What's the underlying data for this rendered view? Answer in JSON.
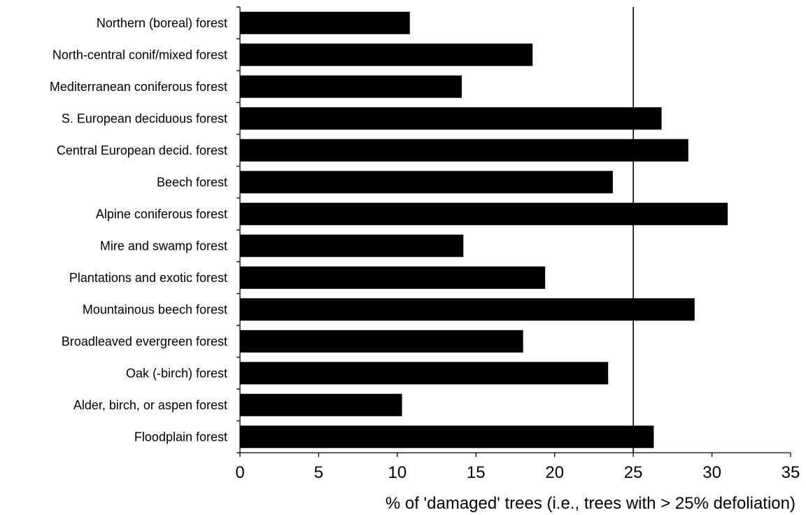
{
  "chart_data": {
    "type": "bar",
    "orientation": "horizontal",
    "title": "",
    "xlabel": "% of 'damaged' trees (i.e., trees with > 25% defoliation)",
    "ylabel": "",
    "xlim": [
      0,
      35
    ],
    "xticks": [
      0,
      5,
      10,
      15,
      20,
      25,
      30,
      35
    ],
    "grid": false,
    "legend": "none",
    "bar_color": "#000000",
    "reference_line_x": 25,
    "categories": [
      "Northern (boreal) forest",
      "North-central conif/mixed forest",
      "Mediterranean coniferous forest",
      "S. European deciduous forest",
      "Central European decid. forest",
      "Beech forest",
      "Alpine coniferous forest",
      "Mire and swamp forest",
      "Plantations and exotic forest",
      "Mountainous beech forest",
      "Broadleaved evergreen forest",
      "Oak (-birch) forest",
      "Alder, birch, or aspen forest",
      "Floodplain forest"
    ],
    "values": [
      10.8,
      18.6,
      14.1,
      26.8,
      28.5,
      23.7,
      31.0,
      14.2,
      19.4,
      28.9,
      18.0,
      23.4,
      10.3,
      26.3
    ]
  }
}
